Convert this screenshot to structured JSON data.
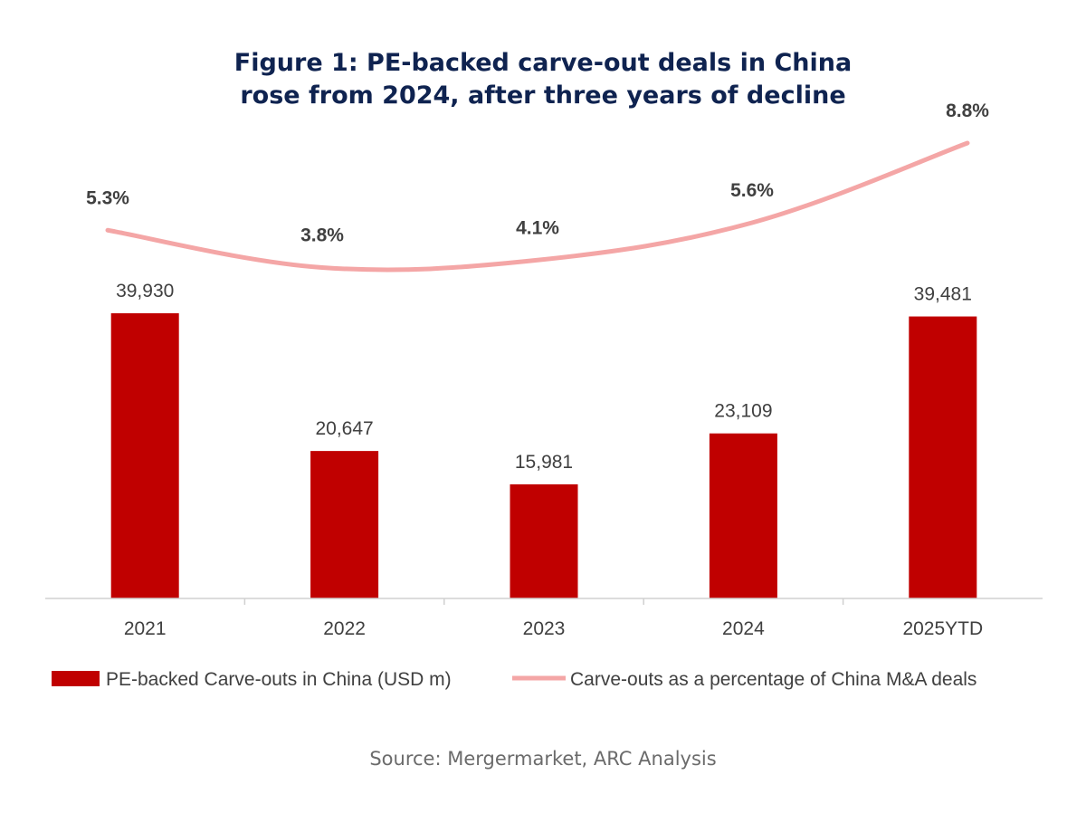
{
  "title_line1": "Figure 1: PE-backed carve-out deals in China",
  "title_line2": "rose from 2024, after three years of decline",
  "source": "Source: Mergermarket, ARC Analysis",
  "colors": {
    "bar": "#c00000",
    "line": "#f4a6a6",
    "axis": "#d0d0d0",
    "title": "#0f2350"
  },
  "chart_data": {
    "type": "bar",
    "categories": [
      "2021",
      "2022",
      "2023",
      "2024",
      "2025YTD"
    ],
    "series": [
      {
        "name": "PE-backed Carve-outs in China (USD m)",
        "kind": "bar",
        "values": [
          39930,
          20647,
          15981,
          23109,
          39481
        ],
        "labels": [
          "39,930",
          "20,647",
          "15,981",
          "23,109",
          "39,481"
        ]
      },
      {
        "name": "Carve-outs as a percentage of China M&A deals",
        "kind": "line",
        "values": [
          5.3,
          3.8,
          4.1,
          5.6,
          8.8
        ],
        "labels": [
          "5.3%",
          "3.8%",
          "4.1%",
          "5.6%",
          "8.8%"
        ]
      }
    ],
    "legend_position": "bottom",
    "grid": false
  }
}
